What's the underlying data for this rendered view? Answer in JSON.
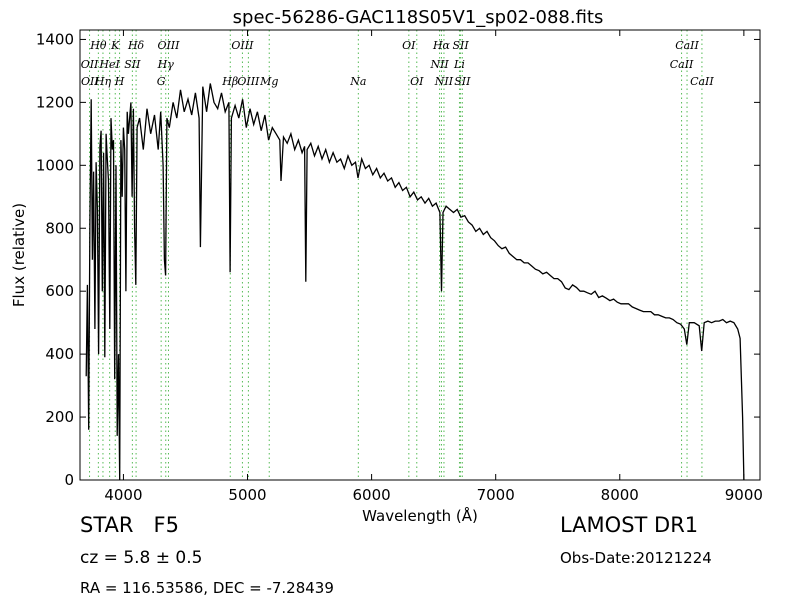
{
  "chart_data": {
    "type": "line",
    "title": "spec-56286-GAC118S05V1_sp02-088.fits",
    "xlabel": "Wavelength (Å)",
    "ylabel": "Flux (relative)",
    "xlim": [
      3650,
      9130
    ],
    "ylim": [
      0,
      1430
    ],
    "xticks": [
      4000,
      5000,
      6000,
      7000,
      8000,
      9000
    ],
    "yticks": [
      0,
      200,
      400,
      600,
      800,
      1000,
      1200,
      1400
    ],
    "grid": false,
    "series": [
      {
        "color": "#000000",
        "points": [
          [
            3700,
            330
          ],
          [
            3710,
            620
          ],
          [
            3720,
            160
          ],
          [
            3730,
            820
          ],
          [
            3740,
            1210
          ],
          [
            3750,
            700
          ],
          [
            3760,
            980
          ],
          [
            3770,
            480
          ],
          [
            3780,
            1010
          ],
          [
            3790,
            860
          ],
          [
            3800,
            400
          ],
          [
            3810,
            1060
          ],
          [
            3820,
            1110
          ],
          [
            3830,
            600
          ],
          [
            3840,
            1040
          ],
          [
            3850,
            390
          ],
          [
            3860,
            1100
          ],
          [
            3870,
            1020
          ],
          [
            3880,
            950
          ],
          [
            3890,
            480
          ],
          [
            3900,
            1150
          ],
          [
            3910,
            1050
          ],
          [
            3920,
            1080
          ],
          [
            3930,
            320
          ],
          [
            3940,
            1000
          ],
          [
            3950,
            140
          ],
          [
            3960,
            400
          ],
          [
            3970,
            0
          ],
          [
            3980,
            1080
          ],
          [
            3990,
            900
          ],
          [
            4000,
            1120
          ],
          [
            4010,
            1050
          ],
          [
            4020,
            600
          ],
          [
            4030,
            1170
          ],
          [
            4040,
            1100
          ],
          [
            4060,
            1200
          ],
          [
            4070,
            900
          ],
          [
            4080,
            1180
          ],
          [
            4090,
            800
          ],
          [
            4100,
            620
          ],
          [
            4110,
            1120
          ],
          [
            4130,
            1150
          ],
          [
            4160,
            1050
          ],
          [
            4190,
            1180
          ],
          [
            4220,
            1100
          ],
          [
            4250,
            1160
          ],
          [
            4280,
            1050
          ],
          [
            4300,
            1170
          ],
          [
            4320,
            1000
          ],
          [
            4330,
            700
          ],
          [
            4340,
            650
          ],
          [
            4350,
            1150
          ],
          [
            4370,
            1120
          ],
          [
            4400,
            1200
          ],
          [
            4430,
            1150
          ],
          [
            4460,
            1240
          ],
          [
            4490,
            1170
          ],
          [
            4520,
            1210
          ],
          [
            4550,
            1160
          ],
          [
            4580,
            1230
          ],
          [
            4610,
            1150
          ],
          [
            4620,
            740
          ],
          [
            4640,
            1250
          ],
          [
            4670,
            1170
          ],
          [
            4700,
            1260
          ],
          [
            4730,
            1200
          ],
          [
            4760,
            1180
          ],
          [
            4790,
            1230
          ],
          [
            4820,
            1170
          ],
          [
            4850,
            1200
          ],
          [
            4860,
            660
          ],
          [
            4870,
            1150
          ],
          [
            4900,
            1190
          ],
          [
            4930,
            1150
          ],
          [
            4960,
            1210
          ],
          [
            4990,
            1120
          ],
          [
            5020,
            1180
          ],
          [
            5050,
            1130
          ],
          [
            5080,
            1170
          ],
          [
            5110,
            1110
          ],
          [
            5140,
            1160
          ],
          [
            5170,
            1080
          ],
          [
            5200,
            1120
          ],
          [
            5230,
            1100
          ],
          [
            5260,
            1080
          ],
          [
            5270,
            950
          ],
          [
            5290,
            1090
          ],
          [
            5320,
            1070
          ],
          [
            5350,
            1100
          ],
          [
            5380,
            1050
          ],
          [
            5410,
            1080
          ],
          [
            5440,
            1040
          ],
          [
            5460,
            1060
          ],
          [
            5470,
            630
          ],
          [
            5480,
            1050
          ],
          [
            5510,
            1070
          ],
          [
            5540,
            1030
          ],
          [
            5570,
            1060
          ],
          [
            5600,
            1020
          ],
          [
            5630,
            1050
          ],
          [
            5660,
            1010
          ],
          [
            5690,
            1040
          ],
          [
            5720,
            1010
          ],
          [
            5750,
            1020
          ],
          [
            5780,
            990
          ],
          [
            5810,
            1030
          ],
          [
            5840,
            1000
          ],
          [
            5870,
            1010
          ],
          [
            5890,
            960
          ],
          [
            5920,
            1020
          ],
          [
            5950,
            990
          ],
          [
            5980,
            1000
          ],
          [
            6010,
            970
          ],
          [
            6040,
            990
          ],
          [
            6070,
            960
          ],
          [
            6100,
            975
          ],
          [
            6130,
            950
          ],
          [
            6160,
            960
          ],
          [
            6190,
            930
          ],
          [
            6220,
            945
          ],
          [
            6250,
            920
          ],
          [
            6280,
            930
          ],
          [
            6310,
            900
          ],
          [
            6340,
            915
          ],
          [
            6370,
            890
          ],
          [
            6400,
            900
          ],
          [
            6430,
            880
          ],
          [
            6460,
            895
          ],
          [
            6490,
            870
          ],
          [
            6520,
            880
          ],
          [
            6550,
            850
          ],
          [
            6563,
            600
          ],
          [
            6575,
            850
          ],
          [
            6600,
            870
          ],
          [
            6630,
            860
          ],
          [
            6660,
            850
          ],
          [
            6690,
            860
          ],
          [
            6720,
            835
          ],
          [
            6750,
            840
          ],
          [
            6780,
            820
          ],
          [
            6810,
            810
          ],
          [
            6840,
            790
          ],
          [
            6870,
            800
          ],
          [
            6900,
            780
          ],
          [
            6930,
            790
          ],
          [
            6960,
            770
          ],
          [
            6990,
            760
          ],
          [
            7020,
            745
          ],
          [
            7050,
            735
          ],
          [
            7080,
            740
          ],
          [
            7110,
            720
          ],
          [
            7140,
            710
          ],
          [
            7170,
            700
          ],
          [
            7200,
            700
          ],
          [
            7230,
            690
          ],
          [
            7260,
            690
          ],
          [
            7290,
            680
          ],
          [
            7320,
            670
          ],
          [
            7350,
            665
          ],
          [
            7380,
            655
          ],
          [
            7410,
            660
          ],
          [
            7440,
            650
          ],
          [
            7470,
            640
          ],
          [
            7500,
            640
          ],
          [
            7530,
            630
          ],
          [
            7560,
            610
          ],
          [
            7590,
            605
          ],
          [
            7620,
            620
          ],
          [
            7650,
            612
          ],
          [
            7680,
            600
          ],
          [
            7710,
            600
          ],
          [
            7740,
            595
          ],
          [
            7770,
            590
          ],
          [
            7800,
            600
          ],
          [
            7830,
            580
          ],
          [
            7860,
            585
          ],
          [
            7890,
            578
          ],
          [
            7920,
            570
          ],
          [
            7950,
            575
          ],
          [
            7980,
            565
          ],
          [
            8010,
            560
          ],
          [
            8040,
            560
          ],
          [
            8070,
            560
          ],
          [
            8100,
            550
          ],
          [
            8130,
            545
          ],
          [
            8160,
            540
          ],
          [
            8190,
            535
          ],
          [
            8220,
            535
          ],
          [
            8250,
            535
          ],
          [
            8280,
            525
          ],
          [
            8310,
            525
          ],
          [
            8340,
            520
          ],
          [
            8370,
            515
          ],
          [
            8400,
            515
          ],
          [
            8430,
            510
          ],
          [
            8460,
            500
          ],
          [
            8490,
            495
          ],
          [
            8520,
            480
          ],
          [
            8540,
            430
          ],
          [
            8560,
            500
          ],
          [
            8600,
            500
          ],
          [
            8640,
            490
          ],
          [
            8660,
            410
          ],
          [
            8680,
            500
          ],
          [
            8710,
            505
          ],
          [
            8740,
            500
          ],
          [
            8770,
            505
          ],
          [
            8800,
            505
          ],
          [
            8830,
            510
          ],
          [
            8860,
            500
          ],
          [
            8890,
            505
          ],
          [
            8920,
            500
          ],
          [
            8950,
            480
          ],
          [
            8970,
            450
          ],
          [
            8990,
            200
          ],
          [
            9000,
            0
          ]
        ]
      }
    ],
    "lines_top": [
      {
        "label": "Hθ",
        "x": 3798
      },
      {
        "label": "K",
        "x": 3934
      },
      {
        "label": "Hδ",
        "x": 4102
      },
      {
        "label": "OIII",
        "x": 4363
      },
      {
        "label": "OIII",
        "x": 4959
      },
      {
        "label": "OI",
        "x": 6300
      },
      {
        "label": "Hα",
        "x": 6563
      },
      {
        "label": "SII",
        "x": 6717
      },
      {
        "label": "CaII",
        "x": 8542
      }
    ],
    "lines_row2": [
      {
        "label": "OII",
        "x": 3727
      },
      {
        "label": "HeI",
        "x": 3889
      },
      {
        "label": "SII",
        "x": 4072
      },
      {
        "label": "Hγ",
        "x": 4341
      },
      {
        "label": "NII",
        "x": 6548
      },
      {
        "label": "Li",
        "x": 6708
      },
      {
        "label": "CaII",
        "x": 8498
      }
    ],
    "lines_row3": [
      {
        "label": "OII",
        "x": 3729
      },
      {
        "label": "Hη",
        "x": 3835
      },
      {
        "label": "H",
        "x": 3969
      },
      {
        "label": "G",
        "x": 4304
      },
      {
        "label": "OIII",
        "x": 5007
      },
      {
        "label": "Hβ",
        "x": 4861
      },
      {
        "label": "Mg",
        "x": 5175
      },
      {
        "label": "Na",
        "x": 5893
      },
      {
        "label": "OI",
        "x": 6364
      },
      {
        "label": "NII",
        "x": 6583
      },
      {
        "label": "SII",
        "x": 6731
      },
      {
        "label": "CaII",
        "x": 8662
      }
    ]
  },
  "info": {
    "class": "STAR",
    "subclass": "F5",
    "cz_text": "cz = 5.8 ± 0.5",
    "radec_text": "RA = 116.53586, DEC = -7.28439",
    "survey": "LAMOST DR1",
    "obs_date": "Obs-Date:20121224"
  },
  "colors": {
    "spectrum": "#000000",
    "line_marker": "#55bb55",
    "axis": "#000000"
  }
}
